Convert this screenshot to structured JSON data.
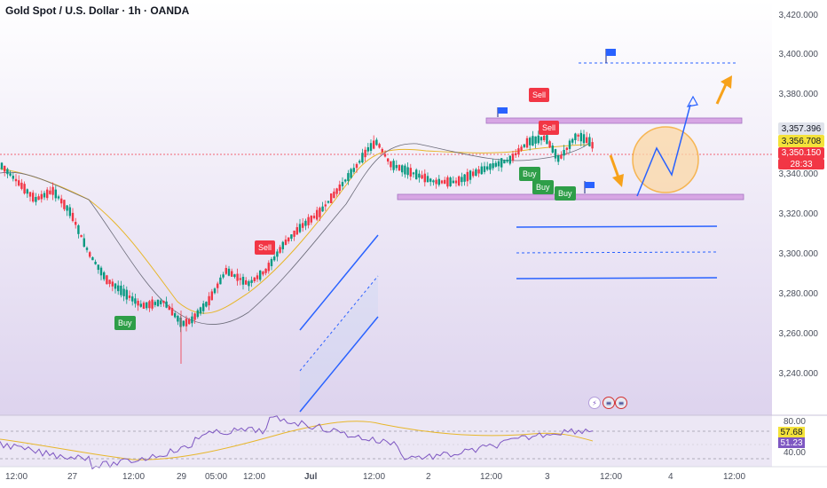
{
  "header": {
    "title": "Gold Spot / U.S. Dollar · 1h · OANDA"
  },
  "price_axis": [
    "3,420.000",
    "3,400.000",
    "3,380.000",
    "3,340.000",
    "3,320.000",
    "3,300.000",
    "3,280.000",
    "3,260.000",
    "3,240.000"
  ],
  "price_boxes": {
    "upper": "3,357.396",
    "middle": "3,356.708",
    "last": "3,350.150",
    "countdown": "28:33"
  },
  "rsi_axis": {
    "top": "80.00",
    "bottom": "40.00"
  },
  "rsi_boxes": {
    "yellow": "57.68",
    "purple": "51.23"
  },
  "time_axis": [
    "12:00",
    "27",
    "12:00",
    "29",
    "05:00",
    "12:00",
    "Jul",
    "12:00",
    "2",
    "12:00",
    "3",
    "12:00",
    "4",
    "12:00"
  ],
  "signals": {
    "sell": [
      "Sell",
      "Sell",
      "Sell"
    ],
    "buy": [
      "Buy",
      "Buy",
      "Buy",
      "Buy"
    ]
  },
  "event_icons": [
    "lightning-icon",
    "us-flag-icon",
    "us-flag-icon"
  ],
  "colors": {
    "up": "#089981",
    "down": "#f23645",
    "sell": "#f23645",
    "buy": "#2e9e48",
    "bg_gradient_end": "#ddd3ee",
    "zone": "#cc99dd",
    "arrow": "#f7a21b",
    "trend": "#2962ff"
  }
}
